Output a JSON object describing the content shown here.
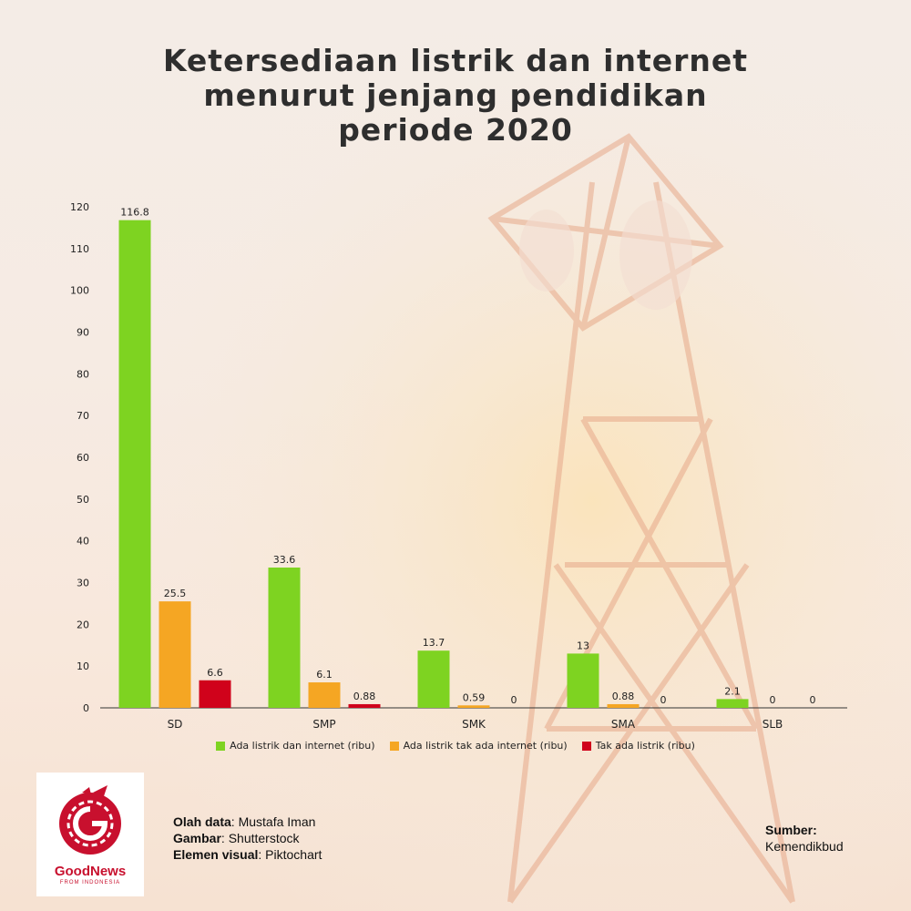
{
  "title_lines": [
    "Ketersediaan listrik dan internet",
    "menurut jenjang pendidikan",
    "periode 2020"
  ],
  "chart_data": {
    "type": "bar",
    "categories": [
      "SD",
      "SMP",
      "SMK",
      "SMA",
      "SLB"
    ],
    "series": [
      {
        "name": "Ada listrik dan internet (ribu)",
        "color": "#7ed321",
        "values": [
          116.8,
          33.6,
          13.7,
          13,
          2.1
        ],
        "labels": [
          "116.8",
          "33.6",
          "13.7",
          "13",
          "2.1"
        ]
      },
      {
        "name": "Ada listrik tak ada internet (ribu)",
        "color": "#f5a623",
        "values": [
          25.5,
          6.1,
          0.59,
          0.88,
          0
        ],
        "labels": [
          "25.5",
          "6.1",
          "0.59",
          "0.88",
          "0"
        ]
      },
      {
        "name": "Tak ada listrik (ribu)",
        "color": "#d0021b",
        "values": [
          6.6,
          0.88,
          0,
          0,
          0
        ],
        "labels": [
          "6.6",
          "0.88",
          "0",
          "0",
          "0"
        ]
      }
    ],
    "yticks": [
      0,
      10,
      20,
      30,
      40,
      50,
      60,
      70,
      80,
      90,
      100,
      110,
      120
    ],
    "ylim": [
      0,
      120
    ],
    "legend_position": "bottom"
  },
  "logo": {
    "name": "GoodNews",
    "sub": "FROM INDONESIA",
    "color": "#c8102e"
  },
  "credits": [
    {
      "label": "Olah data",
      "value": ": Mustafa Iman"
    },
    {
      "label": "Gambar",
      "value": ": Shutterstock"
    },
    {
      "label": "Elemen visual",
      "value": ": Piktochart"
    }
  ],
  "source": {
    "label": "Sumber:",
    "value": "Kemendikbud"
  }
}
